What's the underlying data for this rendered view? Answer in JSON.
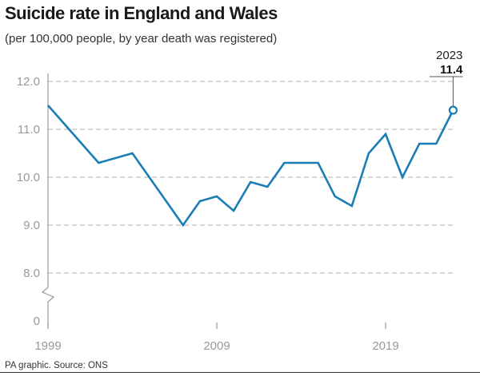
{
  "title": "Suicide rate in England and Wales",
  "subtitle": "(per 100,000 people, by year death was registered)",
  "source": "PA graphic. Source: ONS",
  "colors": {
    "line": "#1b7db5",
    "grid": "#b0b0b0",
    "axis": "#999999"
  },
  "chart_data": {
    "type": "line",
    "title": "Suicide rate in England and Wales",
    "subtitle": "(per 100,000 people, by year death was registered)",
    "x": [
      1999,
      2002,
      2004,
      2007,
      2008,
      2009,
      2010,
      2011,
      2012,
      2013,
      2014,
      2015,
      2016,
      2017,
      2018,
      2019,
      2020,
      2021,
      2022,
      2023
    ],
    "values": [
      11.5,
      10.3,
      10.5,
      9.0,
      9.5,
      9.6,
      9.3,
      9.9,
      9.8,
      10.3,
      10.3,
      10.3,
      9.6,
      9.4,
      10.5,
      10.9,
      10.0,
      10.7,
      10.7,
      11.4
    ],
    "xlim": [
      1999,
      2023
    ],
    "ylim": [
      8.0,
      12.0
    ],
    "y_axis_break": true,
    "x_ticks": [
      "1999",
      "2009",
      "2019"
    ],
    "y_ticks": [
      "12.0",
      "11.0",
      "10.0",
      "9.0",
      "8.0",
      "0"
    ],
    "grid": "horizontal dashed",
    "annotation": {
      "year": "2023",
      "value": "11.4"
    }
  }
}
